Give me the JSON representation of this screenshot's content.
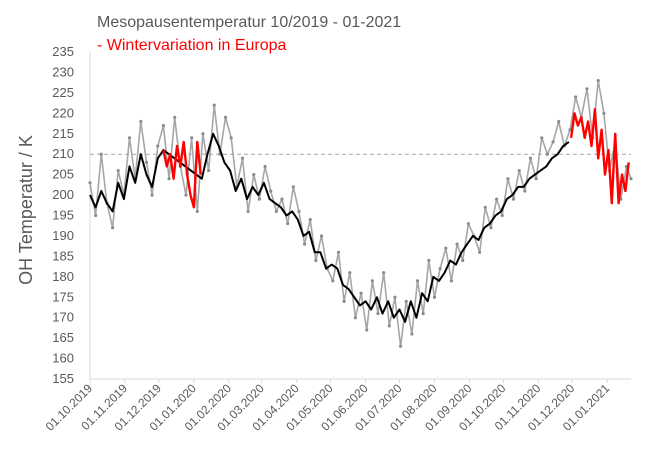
{
  "chart_data": {
    "type": "line",
    "title": "Mesopausentemperatur 10/2019 - 01-2021",
    "subtitle": "- Wintervariation in Europa",
    "ylabel": "OH Temperatur / K",
    "xlabel": "",
    "ylim": [
      155,
      235
    ],
    "yticks": [
      155,
      160,
      165,
      170,
      175,
      180,
      185,
      190,
      195,
      200,
      205,
      210,
      215,
      220,
      225,
      230,
      235
    ],
    "xlim": [
      "2019-10-01",
      "2021-01-22"
    ],
    "x_tick_labels": [
      "01.10.2019",
      "01.11.2019",
      "01.12.2019",
      "01.01.2020",
      "01.02.2020",
      "01.03.2020",
      "01.04.2020",
      "01.05.2020",
      "01.06.2020",
      "01.07.2020",
      "01.08.2020",
      "01.09.2020",
      "01.10.2020",
      "01.11.2020",
      "01.12.2020",
      "01.01.2021"
    ],
    "reference_line": {
      "y": 210,
      "style": "dashed"
    },
    "grid": false,
    "legend": "none",
    "colors": {
      "raw": "#a6a6a6",
      "smoothed": "#000000",
      "winter": "#ff0000",
      "reference": "#a6a6a6"
    },
    "series": [
      {
        "style": "raw daily values (grey, markers)",
        "x": [
          "2019-10-01",
          "2019-10-06",
          "2019-10-11",
          "2019-10-16",
          "2019-10-21",
          "2019-10-26",
          "2019-10-31",
          "2019-11-05",
          "2019-11-10",
          "2019-11-15",
          "2019-11-20",
          "2019-11-25",
          "2019-11-30",
          "2019-12-05",
          "2019-12-10",
          "2019-12-15",
          "2019-12-20",
          "2019-12-25",
          "2019-12-30",
          "2020-01-04",
          "2020-01-09",
          "2020-01-14",
          "2020-01-19",
          "2020-01-24",
          "2020-01-29",
          "2020-02-03",
          "2020-02-08",
          "2020-02-13",
          "2020-02-18",
          "2020-02-23",
          "2020-02-28",
          "2020-03-04",
          "2020-03-09",
          "2020-03-14",
          "2020-03-19",
          "2020-03-24",
          "2020-03-29",
          "2020-04-03",
          "2020-04-08",
          "2020-04-13",
          "2020-04-18",
          "2020-04-23",
          "2020-04-28",
          "2020-05-03",
          "2020-05-08",
          "2020-05-13",
          "2020-05-18",
          "2020-05-23",
          "2020-05-28",
          "2020-06-02",
          "2020-06-07",
          "2020-06-12",
          "2020-06-17",
          "2020-06-22",
          "2020-06-27",
          "2020-07-02",
          "2020-07-07",
          "2020-07-12",
          "2020-07-17",
          "2020-07-22",
          "2020-07-27",
          "2020-08-01",
          "2020-08-06",
          "2020-08-11",
          "2020-08-16",
          "2020-08-21",
          "2020-08-26",
          "2020-08-31",
          "2020-09-05",
          "2020-09-10",
          "2020-09-15",
          "2020-09-20",
          "2020-09-25",
          "2020-09-30",
          "2020-10-05",
          "2020-10-10",
          "2020-10-15",
          "2020-10-20",
          "2020-10-25",
          "2020-10-30",
          "2020-11-04",
          "2020-11-09",
          "2020-11-14",
          "2020-11-19",
          "2020-11-24",
          "2020-11-29",
          "2020-12-04",
          "2020-12-09",
          "2020-12-14",
          "2020-12-19",
          "2020-12-24",
          "2020-12-29",
          "2021-01-03",
          "2021-01-08",
          "2021-01-13",
          "2021-01-18",
          "2021-01-22"
        ],
        "values": [
          203,
          195,
          210,
          198,
          192,
          206,
          200,
          214,
          204,
          218,
          208,
          200,
          212,
          217,
          204,
          219,
          207,
          200,
          214,
          196,
          215,
          206,
          222,
          210,
          219,
          214,
          202,
          209,
          196,
          205,
          199,
          207,
          201,
          196,
          199,
          193,
          202,
          196,
          188,
          194,
          184,
          190,
          182,
          179,
          186,
          174,
          181,
          170,
          176,
          167,
          179,
          171,
          181,
          168,
          175,
          163,
          174,
          166,
          179,
          171,
          184,
          175,
          182,
          187,
          179,
          188,
          184,
          193,
          190,
          186,
          197,
          192,
          199,
          195,
          204,
          199,
          206,
          201,
          209,
          204,
          214,
          210,
          213,
          218,
          212,
          216,
          224,
          219,
          226,
          214,
          228,
          220,
          206,
          213,
          199,
          207,
          204
        ]
      },
      {
        "style": "smoothed (black)",
        "x": [
          "2019-10-01",
          "2019-10-06",
          "2019-10-11",
          "2019-10-16",
          "2019-10-21",
          "2019-10-26",
          "2019-10-31",
          "2019-11-05",
          "2019-11-10",
          "2019-11-15",
          "2019-11-20",
          "2019-11-25",
          "2019-11-30",
          "2019-12-05",
          "2020-01-08",
          "2020-01-13",
          "2020-01-18",
          "2020-01-23",
          "2020-01-28",
          "2020-02-02",
          "2020-02-07",
          "2020-02-12",
          "2020-02-17",
          "2020-02-22",
          "2020-02-27",
          "2020-03-03",
          "2020-03-08",
          "2020-03-13",
          "2020-03-18",
          "2020-03-23",
          "2020-03-28",
          "2020-04-02",
          "2020-04-07",
          "2020-04-12",
          "2020-04-17",
          "2020-04-22",
          "2020-04-27",
          "2020-05-02",
          "2020-05-07",
          "2020-05-12",
          "2020-05-17",
          "2020-05-22",
          "2020-05-27",
          "2020-06-01",
          "2020-06-06",
          "2020-06-11",
          "2020-06-16",
          "2020-06-21",
          "2020-06-26",
          "2020-07-01",
          "2020-07-06",
          "2020-07-11",
          "2020-07-16",
          "2020-07-21",
          "2020-07-26",
          "2020-07-31",
          "2020-08-05",
          "2020-08-10",
          "2020-08-15",
          "2020-08-20",
          "2020-08-25",
          "2020-08-30",
          "2020-09-04",
          "2020-09-09",
          "2020-09-14",
          "2020-09-19",
          "2020-09-24",
          "2020-09-29",
          "2020-10-04",
          "2020-10-09",
          "2020-10-14",
          "2020-10-19",
          "2020-10-24",
          "2020-10-29",
          "2020-11-03",
          "2020-11-08",
          "2020-11-13",
          "2020-11-18",
          "2020-11-23",
          "2020-11-28"
        ],
        "values": [
          200,
          197,
          201,
          198,
          196,
          203,
          199,
          207,
          203,
          210,
          205,
          202,
          209,
          211,
          204,
          210,
          215,
          212,
          208,
          206,
          201,
          204,
          199,
          202,
          200,
          203,
          199,
          198,
          197,
          195,
          196,
          194,
          190,
          191,
          186,
          186,
          182,
          183,
          182,
          178,
          177,
          175,
          173,
          174,
          172,
          175,
          171,
          174,
          170,
          172,
          169,
          174,
          170,
          176,
          174,
          180,
          179,
          181,
          184,
          183,
          186,
          188,
          190,
          189,
          192,
          193,
          195,
          196,
          199,
          200,
          202,
          202,
          204,
          205,
          206,
          207,
          209,
          210,
          212,
          213
        ]
      },
      {
        "style": "winter variation (red)",
        "segments": [
          {
            "x": [
              "2019-12-05",
              "2019-12-08",
              "2019-12-11",
              "2019-12-14",
              "2019-12-17",
              "2019-12-20",
              "2019-12-23",
              "2019-12-26",
              "2019-12-29",
              "2020-01-01",
              "2020-01-04",
              "2020-01-07"
            ],
            "values": [
              211,
              207,
              210,
              204,
              212,
              207,
              213,
              205,
              200,
              197,
              213,
              205
            ]
          },
          {
            "x": [
              "2020-11-30",
              "2020-12-03",
              "2020-12-06",
              "2020-12-09",
              "2020-12-12",
              "2020-12-15",
              "2020-12-18",
              "2020-12-21",
              "2020-12-24",
              "2020-12-27",
              "2020-12-30",
              "2021-01-02",
              "2021-01-05",
              "2021-01-08",
              "2021-01-11",
              "2021-01-14",
              "2021-01-17",
              "2021-01-20"
            ],
            "values": [
              214,
              220,
              217,
              219,
              214,
              218,
              212,
              221,
              209,
              216,
              205,
              211,
              198,
              215,
              198,
              205,
              201,
              208
            ]
          }
        ]
      }
    ]
  }
}
